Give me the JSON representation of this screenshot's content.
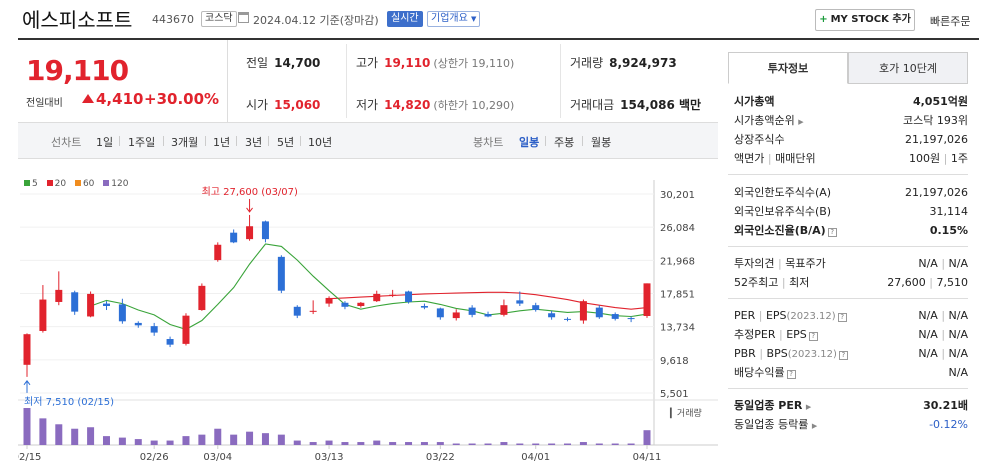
{
  "header": {
    "company_name": "에스피소프트",
    "code": "443670",
    "market": "코스닥",
    "date": "2024.04.12 기준(장마감)",
    "realtime": "실시간",
    "company_info": "기업개요",
    "mystock_label": "MY STOCK 추가",
    "quick_order": "빠른주문"
  },
  "price": {
    "current": "19,110",
    "change_label": "전일대비",
    "change": "4,410",
    "change_pct": "+30.00%",
    "color_up": "#e1232d"
  },
  "stats": {
    "prev_label": "전일",
    "prev": "14,700",
    "high_label": "고가",
    "high": "19,110",
    "upper_limit": "(상한가 19,110)",
    "volume_label": "거래량",
    "volume": "8,924,973",
    "open_label": "시가",
    "open": "15,060",
    "low_label": "저가",
    "low": "14,820",
    "lower_limit": "(하한가 10,290)",
    "amount_label": "거래대금",
    "amount": "154,086 백만"
  },
  "tabs": {
    "line_label": "선차트",
    "line": [
      "1일",
      "1주일",
      "3개월",
      "1년",
      "3년",
      "5년",
      "10년"
    ],
    "candle_label": "봉차트",
    "candle": [
      "일봉",
      "주봉",
      "월봉"
    ],
    "active_candle": "일봉"
  },
  "chart": {
    "legend": [
      {
        "label": "5",
        "color": "#3aa43a"
      },
      {
        "label": "20",
        "color": "#e1232d"
      },
      {
        "label": "60",
        "color": "#f08c1e"
      },
      {
        "label": "120",
        "color": "#8a6bbf"
      }
    ],
    "high_note": "최고 27,600 (03/07)",
    "low_note": "최저 7,510 (02/15)",
    "volume_label": "거래량"
  },
  "chart_data": {
    "type": "candlestick",
    "yticks": [
      "30,201",
      "26,084",
      "21,968",
      "17,851",
      "13,734",
      "9,618",
      "5,501"
    ],
    "ylim": [
      5501,
      30201
    ],
    "x_labels": [
      "02/15",
      "02/26",
      "03/04",
      "03/13",
      "03/22",
      "04/01",
      "04/11"
    ],
    "candles": [
      {
        "o": 9000,
        "h": 12900,
        "l": 7510,
        "c": 12800
      },
      {
        "o": 13200,
        "h": 18900,
        "l": 13000,
        "c": 17100
      },
      {
        "o": 16800,
        "h": 20600,
        "l": 16400,
        "c": 18300
      },
      {
        "o": 18000,
        "h": 18200,
        "l": 15200,
        "c": 15600
      },
      {
        "o": 15000,
        "h": 18100,
        "l": 14900,
        "c": 17800
      },
      {
        "o": 16600,
        "h": 16900,
        "l": 15800,
        "c": 16300
      },
      {
        "o": 16500,
        "h": 17200,
        "l": 14100,
        "c": 14400
      },
      {
        "o": 14200,
        "h": 14400,
        "l": 13600,
        "c": 13900
      },
      {
        "o": 13800,
        "h": 14200,
        "l": 12600,
        "c": 13000
      },
      {
        "o": 12200,
        "h": 12500,
        "l": 11200,
        "c": 11500
      },
      {
        "o": 11600,
        "h": 15400,
        "l": 11400,
        "c": 15100
      },
      {
        "o": 15800,
        "h": 19100,
        "l": 15700,
        "c": 18800
      },
      {
        "o": 22000,
        "h": 24200,
        "l": 21800,
        "c": 23900
      },
      {
        "o": 25400,
        "h": 25800,
        "l": 24100,
        "c": 24200
      },
      {
        "o": 24600,
        "h": 27600,
        "l": 24400,
        "c": 26200
      },
      {
        "o": 26800,
        "h": 26900,
        "l": 24200,
        "c": 24600
      },
      {
        "o": 22400,
        "h": 22600,
        "l": 17900,
        "c": 18200
      },
      {
        "o": 16200,
        "h": 16400,
        "l": 14800,
        "c": 15100
      },
      {
        "o": 15600,
        "h": 17000,
        "l": 15300,
        "c": 15700
      },
      {
        "o": 16600,
        "h": 17500,
        "l": 16200,
        "c": 17300
      },
      {
        "o": 16700,
        "h": 16900,
        "l": 15900,
        "c": 16200
      },
      {
        "o": 16300,
        "h": 16800,
        "l": 16100,
        "c": 16700
      },
      {
        "o": 16900,
        "h": 18200,
        "l": 16800,
        "c": 17800
      },
      {
        "o": 17600,
        "h": 18300,
        "l": 17400,
        "c": 17700
      },
      {
        "o": 18100,
        "h": 18200,
        "l": 16600,
        "c": 16800
      },
      {
        "o": 16300,
        "h": 16600,
        "l": 15900,
        "c": 16100
      },
      {
        "o": 16000,
        "h": 16100,
        "l": 14600,
        "c": 14900
      },
      {
        "o": 14800,
        "h": 15900,
        "l": 14500,
        "c": 15500
      },
      {
        "o": 16100,
        "h": 16400,
        "l": 14900,
        "c": 15200
      },
      {
        "o": 15300,
        "h": 15600,
        "l": 14900,
        "c": 15000
      },
      {
        "o": 15200,
        "h": 17100,
        "l": 15000,
        "c": 16400
      },
      {
        "o": 17000,
        "h": 18100,
        "l": 16300,
        "c": 16600
      },
      {
        "o": 16400,
        "h": 16700,
        "l": 15600,
        "c": 15800
      },
      {
        "o": 15400,
        "h": 15700,
        "l": 14600,
        "c": 14900
      },
      {
        "o": 14700,
        "h": 14900,
        "l": 14400,
        "c": 14600
      },
      {
        "o": 14500,
        "h": 17100,
        "l": 14100,
        "c": 16900
      },
      {
        "o": 16100,
        "h": 16400,
        "l": 14700,
        "c": 14900
      },
      {
        "o": 15300,
        "h": 15500,
        "l": 14500,
        "c": 14700
      },
      {
        "o": 14800,
        "h": 15000,
        "l": 14300,
        "c": 14700
      },
      {
        "o": 15060,
        "h": 19110,
        "l": 14820,
        "c": 19110
      }
    ],
    "ma5": [
      null,
      null,
      null,
      null,
      16300,
      17000,
      16600,
      15800,
      15200,
      14000,
      13400,
      14500,
      16500,
      18600,
      21500,
      24000,
      23700,
      22000,
      20000,
      18200,
      16500,
      15900,
      16300,
      16600,
      16800,
      16900,
      16500,
      16000,
      15700,
      15200,
      15400,
      15700,
      15900,
      15700,
      15500,
      15600,
      15400,
      15100,
      15000,
      15300
    ],
    "ma20": [
      null,
      null,
      null,
      null,
      null,
      null,
      null,
      null,
      null,
      null,
      null,
      null,
      null,
      null,
      null,
      null,
      null,
      null,
      null,
      17200,
      17300,
      17400,
      17500,
      17600,
      17700,
      17800,
      17850,
      17900,
      17950,
      18000,
      18000,
      17900,
      17700,
      17400,
      17100,
      16700,
      16400,
      16100,
      15900,
      16100
    ],
    "volume": [
      25,
      18,
      14,
      11,
      12,
      6,
      5,
      4,
      3,
      3,
      6,
      7,
      11,
      7,
      9,
      8,
      7,
      3,
      2,
      3,
      2,
      2,
      3,
      2,
      2,
      2,
      2,
      1,
      1,
      1,
      2,
      1,
      1,
      1,
      1,
      2,
      1,
      1,
      1,
      10
    ]
  },
  "right_panel": {
    "tab_info": "투자정보",
    "tab_hoga": "호가 10단계",
    "market_cap_label": "시가총액",
    "market_cap": "4,051억원",
    "cap_rank_label": "시가총액순위",
    "cap_rank": "코스닥 193위",
    "shares_label": "상장주식수",
    "shares": "21,197,026",
    "par_label": "액면가",
    "trade_unit_label": "매매단위",
    "par": "100원",
    "trade_unit": "1주",
    "foreign_limit_label": "외국인한도주식수(A)",
    "foreign_limit": "21,197,026",
    "foreign_hold_label": "외국인보유주식수(B)",
    "foreign_hold": "31,114",
    "foreign_ratio_label": "외국인소진율(B/A)",
    "foreign_ratio": "0.15%",
    "opinion_label": "투자의견",
    "target_label": "목표주가",
    "opinion": "N/A",
    "target": "N/A",
    "w52_label": "52주최고",
    "w52_low_label": "최저",
    "w52_high": "27,600",
    "w52_low": "7,510",
    "per_label": "PER",
    "eps_label": "EPS",
    "per_date": "(2023.12)",
    "per": "N/A",
    "eps": "N/A",
    "est_per_label": "추정PER",
    "est_eps_label": "EPS",
    "est_per": "N/A",
    "est_eps": "N/A",
    "pbr_label": "PBR",
    "bps_label": "BPS",
    "pbr_date": "(2023.12)",
    "pbr": "N/A",
    "bps": "N/A",
    "div_label": "배당수익률",
    "div": "N/A",
    "ind_per_label": "동일업종 PER",
    "ind_per": "30.21배",
    "ind_rate_label": "동일업종 등락률",
    "ind_rate": "-0.12%"
  }
}
